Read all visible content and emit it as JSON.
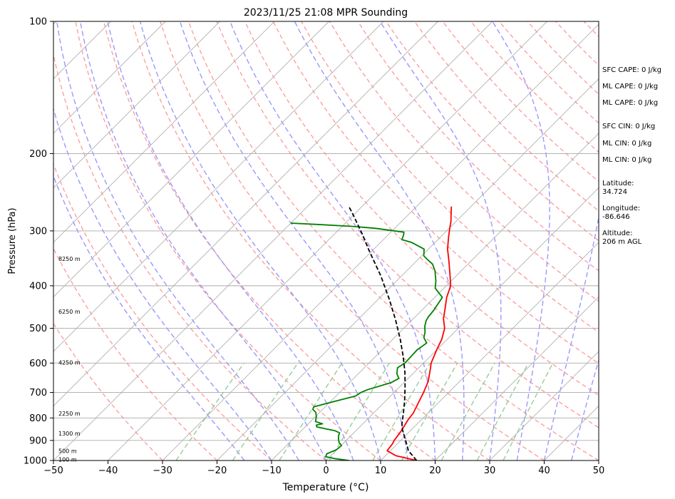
{
  "chart_data": {
    "type": "skew-t",
    "title": "2023/11/25 21:08 MPR Sounding",
    "xlabel": "Temperature (°C)",
    "ylabel": "Pressure (hPa)",
    "xlim": [
      -50,
      50
    ],
    "ylim": [
      1000,
      100
    ],
    "y_scale": "log",
    "x_ticks": [
      -50,
      -40,
      -30,
      -20,
      -10,
      0,
      10,
      20,
      30,
      40,
      50
    ],
    "y_ticks": [
      100,
      200,
      300,
      400,
      500,
      600,
      700,
      800,
      900,
      1000
    ],
    "grid": true,
    "height_labels": [
      {
        "text": "8250 m",
        "p": 347
      },
      {
        "text": "6250 m",
        "p": 458
      },
      {
        "text": "4250 m",
        "p": 598
      },
      {
        "text": "2250 m",
        "p": 782
      },
      {
        "text": "1300 m",
        "p": 868
      },
      {
        "text": "500 m",
        "p": 950
      },
      {
        "text": "100 m",
        "p": 995
      }
    ],
    "series": [
      {
        "role": "temperature",
        "color": "#ff0000",
        "points": [
          {
            "t": 16.6,
            "p": 1000
          },
          {
            "t": 11.9,
            "p": 975
          },
          {
            "t": 9.4,
            "p": 950
          },
          {
            "t": 9.1,
            "p": 915
          },
          {
            "t": 8.8,
            "p": 900
          },
          {
            "t": 8.4,
            "p": 860
          },
          {
            "t": 8.1,
            "p": 840
          },
          {
            "t": 7.6,
            "p": 810
          },
          {
            "t": 7.3,
            "p": 780
          },
          {
            "t": 6.6,
            "p": 750
          },
          {
            "t": 5.4,
            "p": 700
          },
          {
            "t": 4.2,
            "p": 660
          },
          {
            "t": 2.4,
            "p": 620
          },
          {
            "t": 1.4,
            "p": 600
          },
          {
            "t": 0.0,
            "p": 560
          },
          {
            "t": -1.0,
            "p": 530
          },
          {
            "t": -2.5,
            "p": 500
          },
          {
            "t": -4.5,
            "p": 475
          },
          {
            "t": -6.1,
            "p": 450
          },
          {
            "t": -7.8,
            "p": 425
          },
          {
            "t": -9.2,
            "p": 400
          },
          {
            "t": -11.6,
            "p": 375
          },
          {
            "t": -14.2,
            "p": 350
          },
          {
            "t": -16.5,
            "p": 330
          },
          {
            "t": -18.5,
            "p": 310
          },
          {
            "t": -20.0,
            "p": 295
          },
          {
            "t": -21.0,
            "p": 285
          },
          {
            "t": -22.1,
            "p": 276
          },
          {
            "t": -23.1,
            "p": 268
          },
          {
            "t": -23.6,
            "p": 264
          }
        ]
      },
      {
        "role": "dewpoint",
        "color": "#008000",
        "points": [
          {
            "t": 4.2,
            "p": 1000
          },
          {
            "t": 1.2,
            "p": 990
          },
          {
            "t": -0.8,
            "p": 980
          },
          {
            "t": -1.1,
            "p": 965
          },
          {
            "t": -0.1,
            "p": 945
          },
          {
            "t": 0.1,
            "p": 925
          },
          {
            "t": -0.9,
            "p": 910
          },
          {
            "t": -1.6,
            "p": 895
          },
          {
            "t": -2.2,
            "p": 880
          },
          {
            "t": -2.6,
            "p": 865
          },
          {
            "t": -3.9,
            "p": 855
          },
          {
            "t": -6.4,
            "p": 845
          },
          {
            "t": -7.9,
            "p": 838
          },
          {
            "t": -8.3,
            "p": 830
          },
          {
            "t": -7.4,
            "p": 825
          },
          {
            "t": -9.1,
            "p": 815
          },
          {
            "t": -9.8,
            "p": 795
          },
          {
            "t": -10.7,
            "p": 777
          },
          {
            "t": -11.8,
            "p": 765
          },
          {
            "t": -12.1,
            "p": 755
          },
          {
            "t": -9.5,
            "p": 735
          },
          {
            "t": -6.4,
            "p": 713
          },
          {
            "t": -6.1,
            "p": 700
          },
          {
            "t": -5.4,
            "p": 690
          },
          {
            "t": -2.4,
            "p": 665
          },
          {
            "t": -1.7,
            "p": 650
          },
          {
            "t": -2.9,
            "p": 635
          },
          {
            "t": -3.9,
            "p": 615
          },
          {
            "t": -3.4,
            "p": 600
          },
          {
            "t": -3.5,
            "p": 580
          },
          {
            "t": -3.6,
            "p": 560
          },
          {
            "t": -3.1,
            "p": 540
          },
          {
            "t": -4.6,
            "p": 525
          },
          {
            "t": -5.4,
            "p": 510
          },
          {
            "t": -6.5,
            "p": 495
          },
          {
            "t": -7.3,
            "p": 480
          },
          {
            "t": -7.6,
            "p": 470
          },
          {
            "t": -7.8,
            "p": 455
          },
          {
            "t": -8.6,
            "p": 425
          },
          {
            "t": -10.1,
            "p": 415
          },
          {
            "t": -11.6,
            "p": 405
          },
          {
            "t": -12.8,
            "p": 390
          },
          {
            "t": -14.8,
            "p": 370
          },
          {
            "t": -16.5,
            "p": 357
          },
          {
            "t": -18.0,
            "p": 350
          },
          {
            "t": -19.6,
            "p": 342
          },
          {
            "t": -20.8,
            "p": 330
          },
          {
            "t": -24.2,
            "p": 319
          },
          {
            "t": -26.6,
            "p": 314
          },
          {
            "t": -27.1,
            "p": 307
          },
          {
            "t": -27.6,
            "p": 302
          },
          {
            "t": -33.5,
            "p": 296
          },
          {
            "t": -38.0,
            "p": 293
          },
          {
            "t": -45.0,
            "p": 290
          },
          {
            "t": -50.0,
            "p": 288
          }
        ]
      },
      {
        "role": "parcel",
        "color": "#000000",
        "points": [
          {
            "t": 16.6,
            "p": 1000
          },
          {
            "t": 13.3,
            "p": 950
          },
          {
            "t": 10.9,
            "p": 900
          },
          {
            "t": 8.3,
            "p": 850
          },
          {
            "t": 7.1,
            "p": 823
          },
          {
            "t": 5.5,
            "p": 780
          },
          {
            "t": 3.4,
            "p": 730
          },
          {
            "t": 1.0,
            "p": 680
          },
          {
            "t": -1.7,
            "p": 630
          },
          {
            "t": -4.9,
            "p": 580
          },
          {
            "t": -8.6,
            "p": 530
          },
          {
            "t": -12.9,
            "p": 480
          },
          {
            "t": -17.9,
            "p": 430
          },
          {
            "t": -23.8,
            "p": 380
          },
          {
            "t": -31.0,
            "p": 330
          },
          {
            "t": -34.9,
            "p": 305
          },
          {
            "t": -39.3,
            "p": 280
          },
          {
            "t": -40.8,
            "p": 272
          },
          {
            "t": -42.4,
            "p": 264
          }
        ]
      }
    ],
    "reference_lines": {
      "isotherm_color": "#b0b0b0",
      "dry_adiabat_color": "#ff9999",
      "moist_adiabat_color": "#9999ff",
      "mixing_ratio_color": "#99cc99",
      "mixing_ratio_values": [
        0.4,
        1,
        2,
        4,
        7,
        10,
        16,
        24,
        32
      ]
    }
  },
  "annotations": [
    "SFC CAPE: 0 J/kg",
    "ML CAPE: 0 J/kg",
    "ML CAPE: 0 J/kg",
    "SFC CIN: 0 J/kg",
    "ML CIN: 0 J/kg",
    "ML CIN: 0 J/kg",
    "Latitude:\n34.724",
    "Longitude:\n-86.646",
    "Altitude:\n206 m AGL"
  ]
}
